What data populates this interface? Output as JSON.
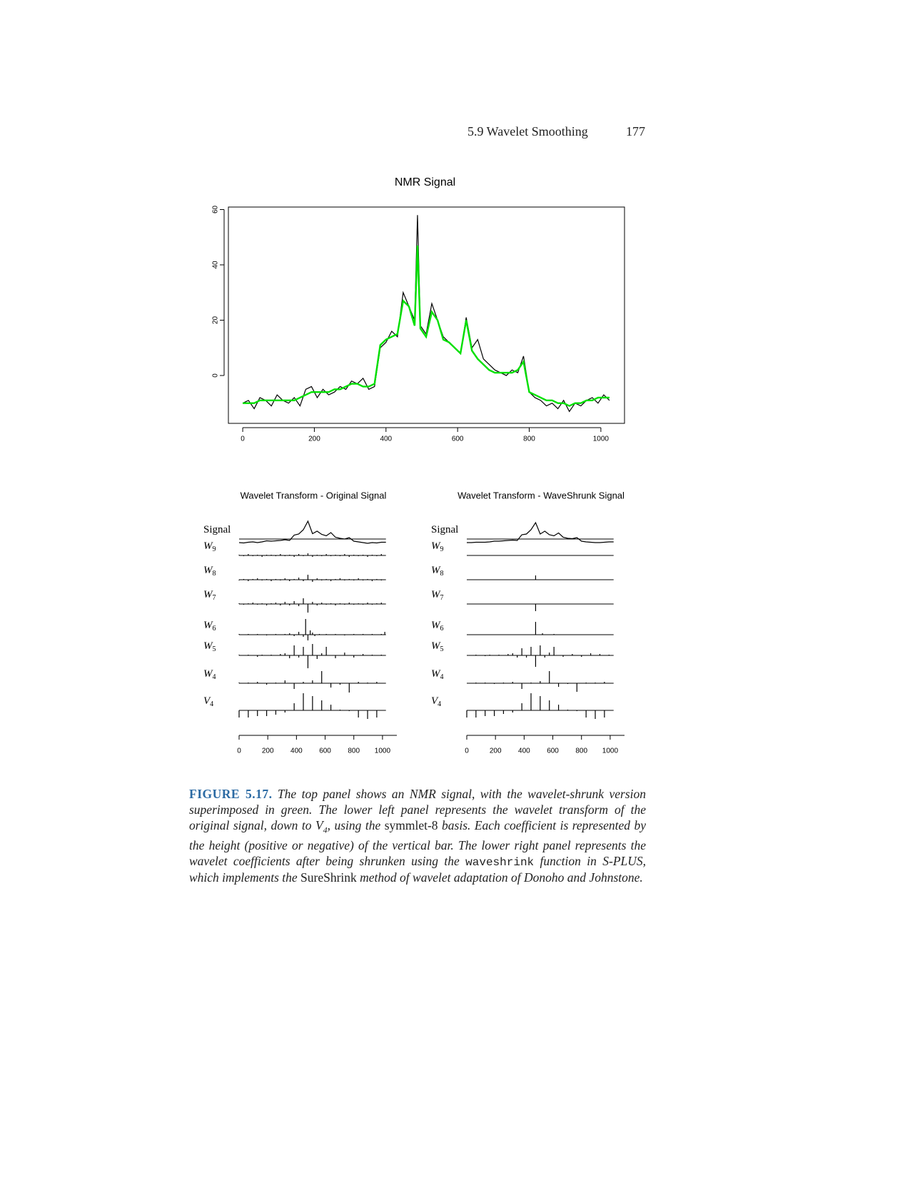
{
  "header": {
    "section": "5.9 Wavelet Smoothing",
    "page": "177"
  },
  "chart_data": [
    {
      "type": "line",
      "title": "NMR Signal",
      "x": [
        0,
        16,
        32,
        48,
        64,
        80,
        96,
        112,
        128,
        144,
        160,
        176,
        192,
        208,
        224,
        240,
        256,
        272,
        288,
        304,
        320,
        336,
        352,
        368,
        384,
        400,
        416,
        432,
        448,
        464,
        480,
        488,
        496,
        512,
        528,
        544,
        560,
        576,
        592,
        608,
        624,
        640,
        656,
        672,
        688,
        704,
        720,
        736,
        752,
        768,
        784,
        800,
        816,
        832,
        848,
        864,
        880,
        896,
        912,
        928,
        944,
        960,
        976,
        992,
        1008,
        1024
      ],
      "series": [
        {
          "color": "#000000",
          "values": [
            -10,
            -9,
            -12,
            -8,
            -9,
            -11,
            -7,
            -9,
            -10,
            -8,
            -11,
            -5,
            -4,
            -8,
            -5,
            -7,
            -6,
            -4,
            -5,
            -2,
            -3,
            -1,
            -5,
            -4,
            10,
            12,
            16,
            14,
            30,
            25,
            20,
            58,
            18,
            15,
            26,
            20,
            14,
            12,
            10,
            8,
            21,
            10,
            13,
            6,
            4,
            2,
            1,
            0,
            2,
            1,
            7,
            -6,
            -8,
            -9,
            -11,
            -10,
            -12,
            -9,
            -13,
            -10,
            -11,
            -9,
            -8,
            -10,
            -7,
            -9
          ]
        },
        {
          "color": "#00e000",
          "values": [
            -10,
            -10,
            -10,
            -9,
            -9,
            -9,
            -9,
            -9,
            -9,
            -9,
            -8,
            -7,
            -6,
            -6,
            -6,
            -6,
            -5,
            -5,
            -4,
            -3,
            -3,
            -4,
            -4,
            -3,
            11,
            13,
            14,
            15,
            27,
            25,
            18,
            47,
            17,
            14,
            23,
            20,
            13,
            12,
            10,
            8,
            20,
            9,
            6,
            4,
            2,
            1,
            1,
            1,
            1,
            2,
            5,
            -6,
            -7,
            -8,
            -9,
            -9,
            -10,
            -10,
            -11,
            -10,
            -10,
            -9,
            -9,
            -8,
            -8,
            -8
          ]
        }
      ],
      "xlim": [
        -40,
        1066
      ],
      "ylim": [
        -17.3,
        60.9
      ],
      "xticks": [
        0,
        200,
        400,
        600,
        800,
        1000
      ],
      "yticks": [
        0,
        20,
        40,
        60
      ]
    },
    {
      "type": "wavelet",
      "title": "Wavelet Transform - Original Signal",
      "xlim": [
        0,
        1100
      ],
      "xticks": [
        0,
        200,
        400,
        600,
        800,
        1000
      ],
      "rows": [
        {
          "label": "Signal",
          "x": [
            0,
            32,
            64,
            96,
            128,
            160,
            192,
            224,
            256,
            288,
            320,
            352,
            384,
            416,
            448,
            480,
            512,
            544,
            576,
            608,
            640,
            672,
            704,
            736,
            768,
            800,
            832,
            864,
            896,
            928,
            960,
            992,
            1024
          ],
          "values": [
            -10,
            -11,
            -9,
            -8,
            -10,
            -8,
            -5,
            -6,
            -5,
            -4,
            -2,
            -4,
            11,
            14,
            26,
            50,
            15,
            22,
            13,
            9,
            18,
            5,
            2,
            0,
            4,
            -6,
            -8,
            -10,
            -12,
            -10,
            -11,
            -9,
            -9
          ]
        },
        {
          "label": "W",
          "sub": "9",
          "x": [
            0,
            32,
            64,
            96,
            128,
            160,
            192,
            224,
            256,
            288,
            320,
            352,
            384,
            416,
            448,
            480,
            512,
            544,
            576,
            608,
            640,
            672,
            704,
            736,
            768,
            800,
            832,
            864,
            896,
            928,
            960,
            992
          ],
          "values": [
            1,
            -1,
            2,
            -1,
            1,
            -2,
            1,
            1,
            -1,
            2,
            -1,
            1,
            -2,
            2,
            -1,
            3,
            -2,
            1,
            -1,
            2,
            -1,
            1,
            -1,
            2,
            -2,
            1,
            -1,
            1,
            -2,
            1,
            -1,
            2
          ]
        },
        {
          "label": "W",
          "sub": "8",
          "x": [
            0,
            32,
            64,
            96,
            128,
            160,
            192,
            224,
            256,
            288,
            320,
            352,
            384,
            416,
            448,
            480,
            512,
            544,
            576,
            608,
            640,
            672,
            704,
            736,
            768,
            800,
            832,
            864,
            896,
            928,
            960,
            992
          ],
          "values": [
            -1,
            1,
            -2,
            1,
            2,
            -1,
            1,
            -2,
            1,
            -1,
            2,
            -2,
            1,
            3,
            -2,
            7,
            -3,
            2,
            -1,
            1,
            -2,
            1,
            2,
            -1,
            1,
            -1,
            2,
            -1,
            1,
            -2,
            1,
            -1
          ]
        },
        {
          "label": "W",
          "sub": "7",
          "x": [
            0,
            32,
            64,
            96,
            128,
            160,
            192,
            224,
            256,
            288,
            320,
            352,
            384,
            416,
            448,
            480,
            512,
            544,
            576,
            608,
            640,
            672,
            704,
            736,
            768,
            800,
            832,
            864,
            896,
            928,
            960,
            992
          ],
          "values": [
            1,
            -1,
            1,
            2,
            -1,
            1,
            -2,
            1,
            2,
            -2,
            3,
            -2,
            4,
            -3,
            8,
            -12,
            3,
            -2,
            2,
            -1,
            1,
            -2,
            1,
            -1,
            2,
            -1,
            1,
            -1,
            2,
            -1,
            1,
            2
          ]
        },
        {
          "label": "W",
          "sub": "6",
          "x": [
            0,
            64,
            128,
            192,
            256,
            320,
            352,
            384,
            416,
            448,
            464,
            480,
            496,
            512,
            528,
            560,
            608,
            672,
            736,
            800,
            864,
            928,
            992,
            1016
          ],
          "values": [
            1,
            1,
            1,
            -1,
            1,
            1,
            2,
            -2,
            4,
            -3,
            22,
            -8,
            6,
            3,
            -2,
            1,
            1,
            1,
            -1,
            1,
            1,
            1,
            1,
            4
          ]
        },
        {
          "label": "W",
          "sub": "5",
          "x": [
            0,
            64,
            128,
            160,
            224,
            288,
            320,
            352,
            384,
            416,
            448,
            480,
            512,
            544,
            576,
            608,
            672,
            736,
            800,
            864,
            928,
            992
          ],
          "values": [
            1,
            1,
            -2,
            1,
            1,
            2,
            3,
            -4,
            14,
            -3,
            12,
            -18,
            16,
            -5,
            3,
            12,
            -4,
            4,
            -3,
            2,
            1,
            1
          ]
        },
        {
          "label": "W",
          "sub": "4",
          "x": [
            0,
            64,
            128,
            192,
            256,
            320,
            384,
            448,
            512,
            576,
            640,
            704,
            768,
            832,
            896,
            960
          ],
          "values": [
            1,
            1,
            2,
            -2,
            1,
            4,
            -8,
            2,
            4,
            17,
            -6,
            -2,
            -13,
            2,
            1,
            2
          ]
        },
        {
          "label": "V",
          "sub": "4",
          "x": [
            0,
            64,
            128,
            192,
            256,
            320,
            384,
            448,
            512,
            576,
            640,
            704,
            768,
            832,
            896,
            960
          ],
          "values": [
            -10,
            -10,
            -8,
            -8,
            -6,
            -3,
            10,
            24,
            20,
            14,
            8,
            1,
            -1,
            -10,
            -12,
            -10
          ]
        }
      ]
    },
    {
      "type": "wavelet",
      "title": "Wavelet Transform - WaveShrunk Signal",
      "xlim": [
        0,
        1100
      ],
      "xticks": [
        0,
        200,
        400,
        600,
        800,
        1000
      ],
      "rows": [
        {
          "label": "Signal",
          "x": [
            0,
            32,
            64,
            96,
            128,
            160,
            192,
            224,
            256,
            288,
            320,
            352,
            384,
            416,
            448,
            480,
            512,
            544,
            576,
            608,
            640,
            672,
            704,
            736,
            768,
            800,
            832,
            864,
            896,
            928,
            960,
            992,
            1024
          ],
          "values": [
            -10,
            -10,
            -9,
            -9,
            -9,
            -8,
            -6,
            -6,
            -5,
            -4,
            -3,
            -4,
            12,
            14,
            26,
            46,
            14,
            22,
            12,
            9,
            17,
            5,
            2,
            1,
            4,
            -6,
            -8,
            -9,
            -10,
            -10,
            -9,
            -8,
            -8
          ]
        },
        {
          "label": "W",
          "sub": "9",
          "x": [],
          "values": []
        },
        {
          "label": "W",
          "sub": "8",
          "x": [
            480
          ],
          "values": [
            6
          ]
        },
        {
          "label": "W",
          "sub": "7",
          "x": [
            480
          ],
          "values": [
            -10
          ]
        },
        {
          "label": "W",
          "sub": "6",
          "x": [
            480,
            528,
            608
          ],
          "values": [
            18,
            2,
            1
          ]
        },
        {
          "label": "W",
          "sub": "5",
          "x": [
            64,
            128,
            160,
            224,
            288,
            320,
            352,
            384,
            416,
            448,
            480,
            512,
            544,
            576,
            608,
            672,
            736,
            800,
            864,
            928,
            992
          ],
          "values": [
            1,
            -1,
            1,
            1,
            2,
            3,
            -3,
            10,
            -3,
            12,
            -16,
            14,
            -3,
            4,
            12,
            -2,
            2,
            -2,
            3,
            2,
            1
          ]
        },
        {
          "label": "W",
          "sub": "4",
          "x": [
            0,
            64,
            128,
            192,
            256,
            320,
            384,
            448,
            512,
            576,
            640,
            704,
            768,
            832,
            896,
            960
          ],
          "values": [
            0,
            1,
            1,
            -1,
            1,
            2,
            -8,
            1,
            3,
            17,
            -5,
            -1,
            -12,
            1,
            1,
            2
          ]
        },
        {
          "label": "V",
          "sub": "4",
          "x": [
            0,
            64,
            128,
            192,
            256,
            320,
            384,
            448,
            512,
            576,
            640,
            704,
            768,
            832,
            896,
            960
          ],
          "values": [
            -10,
            -10,
            -8,
            -8,
            -5,
            -3,
            10,
            24,
            20,
            14,
            8,
            1,
            -1,
            -10,
            -12,
            -10
          ]
        }
      ]
    }
  ],
  "caption": {
    "segments": [
      "FIGURE 5.17.",
      " The top panel shows an NMR signal, with the wavelet-shrunk version superimposed in green. The lower left panel represents the wavelet transform of the original signal, down to ",
      "V",
      "4",
      ", using the ",
      "symmlet-8",
      " basis. Each coefficient is represented by the height (positive or negative) of the vertical bar. The lower right panel represents the wavelet coefficients after being shrunken using the ",
      "waveshrink",
      " function in S-PLUS, which implements the ",
      "SureShrink",
      " method of wavelet adaptation of Donoho and Johnstone."
    ]
  }
}
